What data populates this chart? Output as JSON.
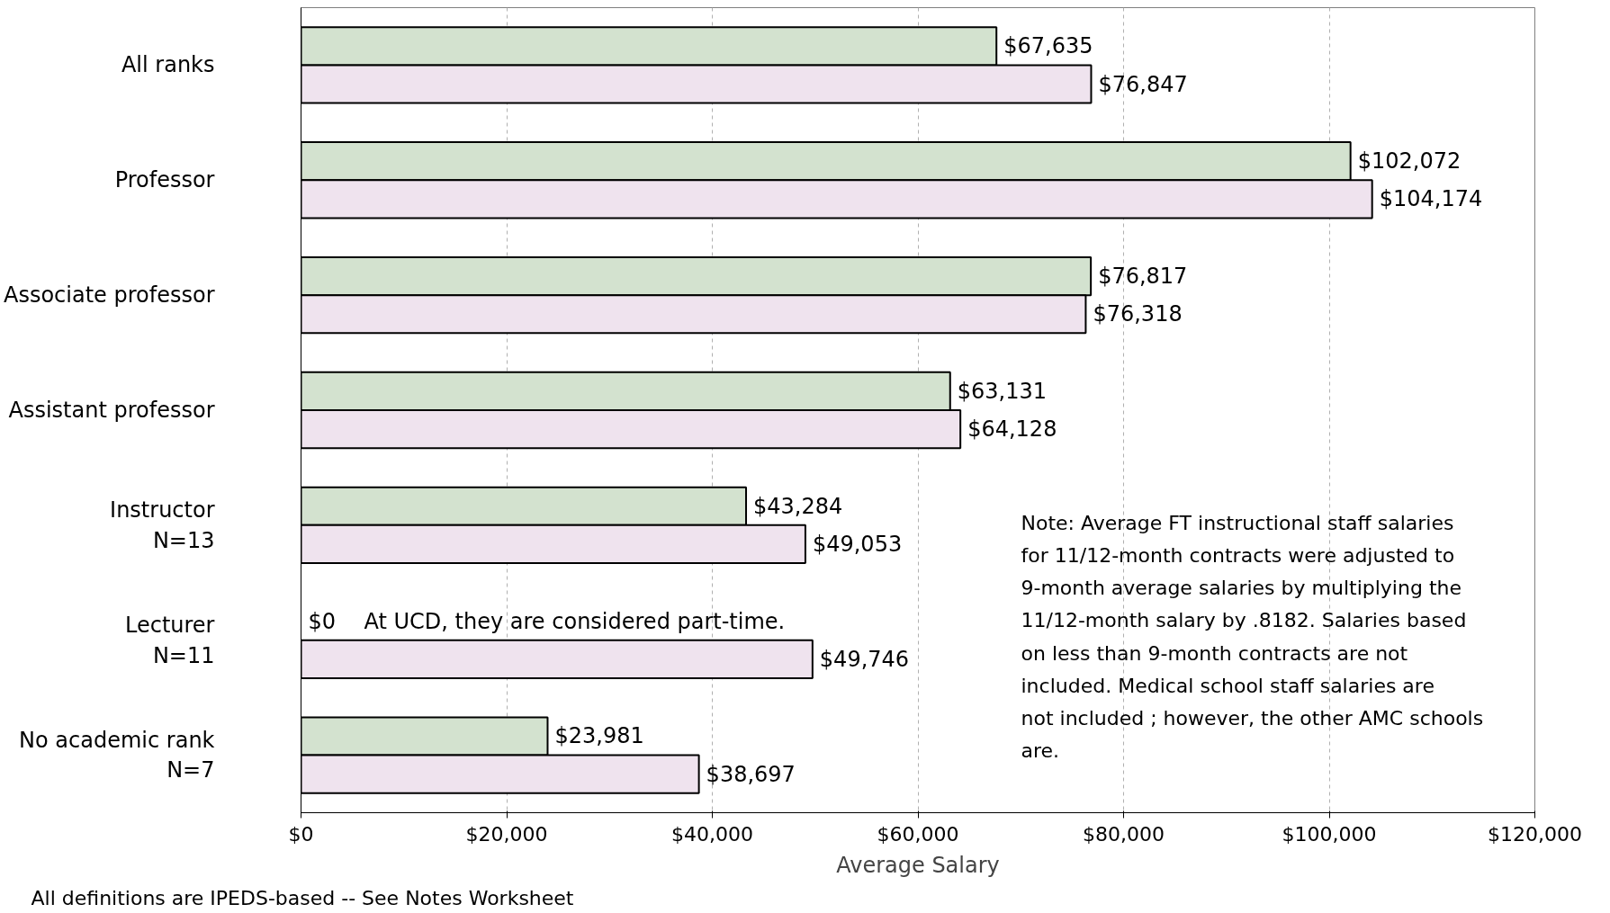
{
  "chart_data": {
    "type": "bar",
    "orientation": "horizontal",
    "xlabel": "Average Salary",
    "categories": [
      "All ranks",
      "Professor",
      "Associate professor",
      "Assistant professor",
      "Instructor\nN=13",
      "Lecturer\nN=11",
      "No academic rank\nN=7"
    ],
    "series": [
      {
        "color": "#d3e2cf",
        "values": [
          67635,
          102072,
          76817,
          63131,
          43284,
          0,
          23981
        ],
        "value_labels": [
          "$67,635",
          "$102,072",
          "$76,817",
          "$63,131",
          "$43,284",
          "$0",
          "$23,981"
        ]
      },
      {
        "color": "#efe3ee",
        "values": [
          76847,
          104174,
          76318,
          64128,
          49053,
          49746,
          38697
        ],
        "value_labels": [
          "$76,847",
          "$104,174",
          "$76,318",
          "$64,128",
          "$49,053",
          "$49,746",
          "$38,697"
        ]
      }
    ],
    "xlim": [
      0,
      120000
    ],
    "xticks": [
      {
        "value": 0,
        "label": "$0"
      },
      {
        "value": 20000,
        "label": "$20,000"
      },
      {
        "value": 40000,
        "label": "$40,000"
      },
      {
        "value": 60000,
        "label": "$60,000"
      },
      {
        "value": 80000,
        "label": "$80,000"
      },
      {
        "value": 100000,
        "label": "$100,000"
      },
      {
        "value": 120000,
        "label": "$120,000"
      }
    ],
    "grid": "x",
    "annotations": [
      "Note:  Average FT instructional staff salaries for 11/12-month contracts were adjusted to 9-month average salaries by multiplying the 11/12-month salary by .8182.  Salaries based on less than 9-month contracts are not included.  Medical school staff salaries are not included ; however, the other AMC schools are.",
      "All definitions are IPEDS-based -- See Notes Worksheet",
      {
        "text": "At UCD, they are considered part-time.",
        "x": 0,
        "y": "Lecturer\nN=11"
      }
    ]
  }
}
